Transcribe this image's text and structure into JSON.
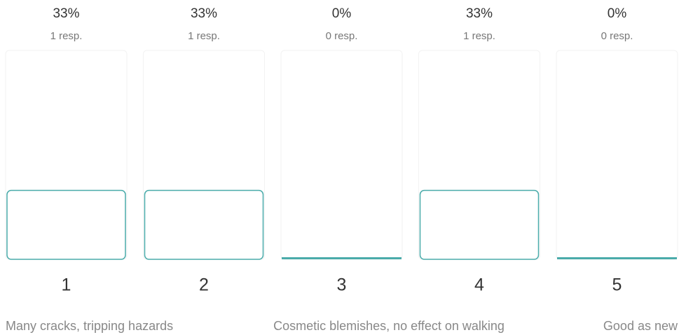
{
  "chart_data": {
    "type": "bar",
    "categories": [
      "1",
      "2",
      "3",
      "4",
      "5"
    ],
    "values": [
      33,
      33,
      0,
      33,
      0
    ],
    "value_labels": [
      "33%",
      "33%",
      "0%",
      "33%",
      "0%"
    ],
    "counts": [
      1,
      1,
      0,
      1,
      0
    ],
    "count_labels": [
      "1 resp.",
      "1 resp.",
      "0 resp.",
      "1 resp.",
      "0 resp."
    ],
    "scale_labels": [
      "Many cracks, tripping hazards",
      "Cosmetic blemishes, no effect on walking",
      "Good as new"
    ],
    "color": "#4aabaa",
    "ylim": [
      0,
      100
    ]
  }
}
